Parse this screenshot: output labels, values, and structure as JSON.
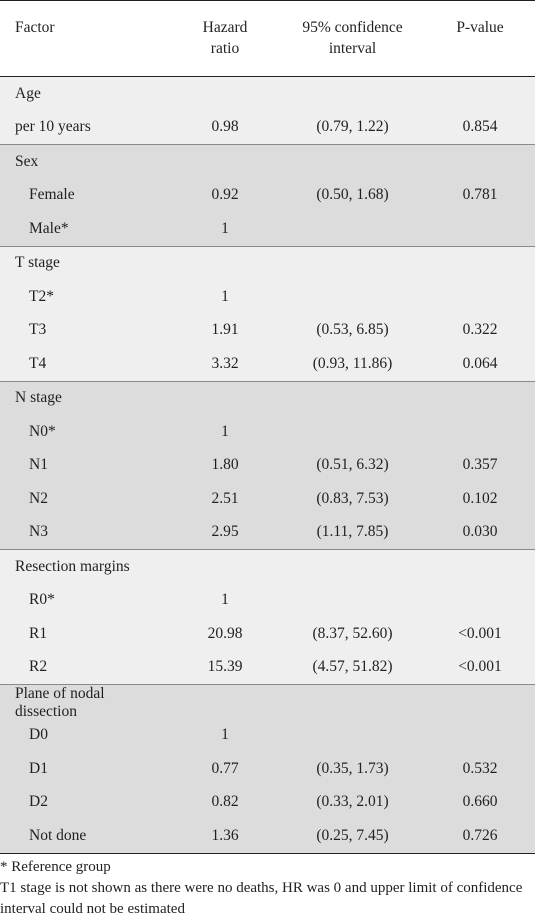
{
  "headers": {
    "factor": "Factor",
    "hr_line1": "Hazard",
    "hr_line2": "ratio",
    "ci_line1": "95% confidence",
    "ci_line2": "interval",
    "p": "P-value"
  },
  "groups": [
    {
      "shade": "light",
      "rows": [
        {
          "kind": "title",
          "factor": "Age",
          "hr": "",
          "ci": "",
          "p": ""
        },
        {
          "kind": "plain",
          "factor": "per 10 years",
          "hr": "0.98",
          "ci": "(0.79, 1.22)",
          "p": "0.854"
        }
      ]
    },
    {
      "shade": "shade",
      "rows": [
        {
          "kind": "title",
          "factor": "Sex",
          "hr": "",
          "ci": "",
          "p": ""
        },
        {
          "kind": "sub",
          "factor": "Female",
          "hr": "0.92",
          "ci": "(0.50, 1.68)",
          "p": "0.781"
        },
        {
          "kind": "sub",
          "factor": "Male*",
          "hr": "1",
          "ci": "",
          "p": ""
        }
      ]
    },
    {
      "shade": "light",
      "rows": [
        {
          "kind": "title",
          "factor": "T stage",
          "hr": "",
          "ci": "",
          "p": ""
        },
        {
          "kind": "sub",
          "factor": "T2*",
          "hr": "1",
          "ci": "",
          "p": ""
        },
        {
          "kind": "sub",
          "factor": "T3",
          "hr": "1.91",
          "ci": "(0.53, 6.85)",
          "p": "0.322"
        },
        {
          "kind": "sub",
          "factor": "T4",
          "hr": "3.32",
          "ci": "(0.93, 11.86)",
          "p": "0.064"
        }
      ]
    },
    {
      "shade": "shade",
      "rows": [
        {
          "kind": "title",
          "factor": "N stage",
          "hr": "",
          "ci": "",
          "p": ""
        },
        {
          "kind": "sub",
          "factor": "N0*",
          "hr": "1",
          "ci": "",
          "p": ""
        },
        {
          "kind": "sub",
          "factor": "N1",
          "hr": "1.80",
          "ci": "(0.51, 6.32)",
          "p": "0.357"
        },
        {
          "kind": "sub",
          "factor": "N2",
          "hr": "2.51",
          "ci": "(0.83, 7.53)",
          "p": "0.102"
        },
        {
          "kind": "sub",
          "factor": "N3",
          "hr": "2.95",
          "ci": "(1.11, 7.85)",
          "p": "0.030"
        }
      ]
    },
    {
      "shade": "light",
      "rows": [
        {
          "kind": "title",
          "factor": "Resection margins",
          "hr": "",
          "ci": "",
          "p": ""
        },
        {
          "kind": "sub",
          "factor": "R0*",
          "hr": "1",
          "ci": "",
          "p": ""
        },
        {
          "kind": "sub",
          "factor": "R1",
          "hr": "20.98",
          "ci": "(8.37, 52.60)",
          "p": "<0.001"
        },
        {
          "kind": "sub",
          "factor": "R2",
          "hr": "15.39",
          "ci": "(4.57, 51.82)",
          "p": "<0.001"
        }
      ]
    },
    {
      "shade": "shade",
      "rows": [
        {
          "kind": "title",
          "factor": "Plane of nodal dissection",
          "hr": "",
          "ci": "",
          "p": ""
        },
        {
          "kind": "sub",
          "factor": "D0",
          "hr": "1",
          "ci": "",
          "p": ""
        },
        {
          "kind": "sub",
          "factor": "D1",
          "hr": "0.77",
          "ci": "(0.35, 1.73)",
          "p": "0.532"
        },
        {
          "kind": "sub",
          "factor": "D2",
          "hr": "0.82",
          "ci": "(0.33, 2.01)",
          "p": "0.660"
        },
        {
          "kind": "sub",
          "factor": "Not done",
          "hr": "1.36",
          "ci": "(0.25, 7.45)",
          "p": "0.726"
        }
      ]
    }
  ],
  "footnotes": [
    "* Reference group",
    "T1 stage is not shown as there were no deaths, HR was 0 and upper limit of confidence interval could not be estimated"
  ]
}
